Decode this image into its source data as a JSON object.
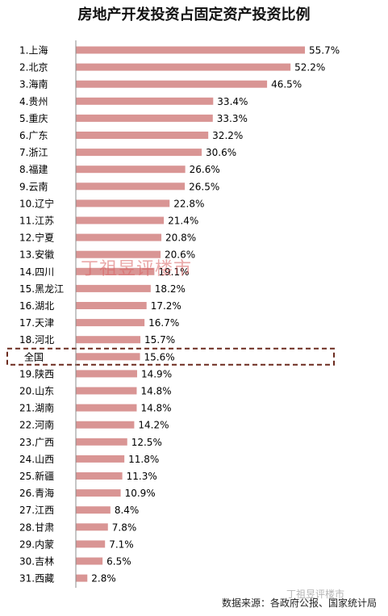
{
  "chart_data": {
    "type": "bar",
    "orientation": "horizontal",
    "title": "房地产开发投资占固定资产投资比例",
    "categories": [
      "1.上海",
      "2.北京",
      "3.海南",
      "4.贵州",
      "5.重庆",
      "6.广东",
      "7.浙江",
      "8.福建",
      "9.云南",
      "10.辽宁",
      "11.江苏",
      "12.宁夏",
      "13.安徽",
      "14.四川",
      "15.黑龙江",
      "16.湖北",
      "17.天津",
      "18.河北",
      "全国",
      "19.陕西",
      "20.山东",
      "21.湖南",
      "22.河南",
      "23.广西",
      "24.山西",
      "25.新疆",
      "26.青海",
      "27.江西",
      "28.甘肃",
      "29.内蒙",
      "30.吉林",
      "31.西藏"
    ],
    "values": [
      55.7,
      52.2,
      46.5,
      33.4,
      33.3,
      32.2,
      30.6,
      26.6,
      26.5,
      22.8,
      21.4,
      20.8,
      20.6,
      19.1,
      18.2,
      17.2,
      16.7,
      15.7,
      15.6,
      14.9,
      14.8,
      14.8,
      14.2,
      12.5,
      11.8,
      11.3,
      10.9,
      8.4,
      7.8,
      7.1,
      6.5,
      2.8
    ],
    "value_labels": [
      "55.7%",
      "52.2%",
      "46.5%",
      "33.4%",
      "33.3%",
      "32.2%",
      "30.6%",
      "26.6%",
      "26.5%",
      "22.8%",
      "21.4%",
      "20.8%",
      "20.6%",
      "19.1%",
      "18.2%",
      "17.2%",
      "16.7%",
      "15.7%",
      "15.6%",
      "14.9%",
      "14.8%",
      "14.8%",
      "14.2%",
      "12.5%",
      "11.8%",
      "11.3%",
      "10.9%",
      "8.4%",
      "7.8%",
      "7.1%",
      "6.5%",
      "2.8%"
    ],
    "highlight_category": "全国",
    "xlim": [
      0,
      60
    ],
    "grid": false,
    "legend": "none",
    "bar_color": "#d99594",
    "highlight_border_color": "#6b2a1e"
  },
  "watermark": "丁祖昱评楼市",
  "watermark_small": "丁祖昱评楼市",
  "source": "数据来源：各政府公报、国家统计局"
}
